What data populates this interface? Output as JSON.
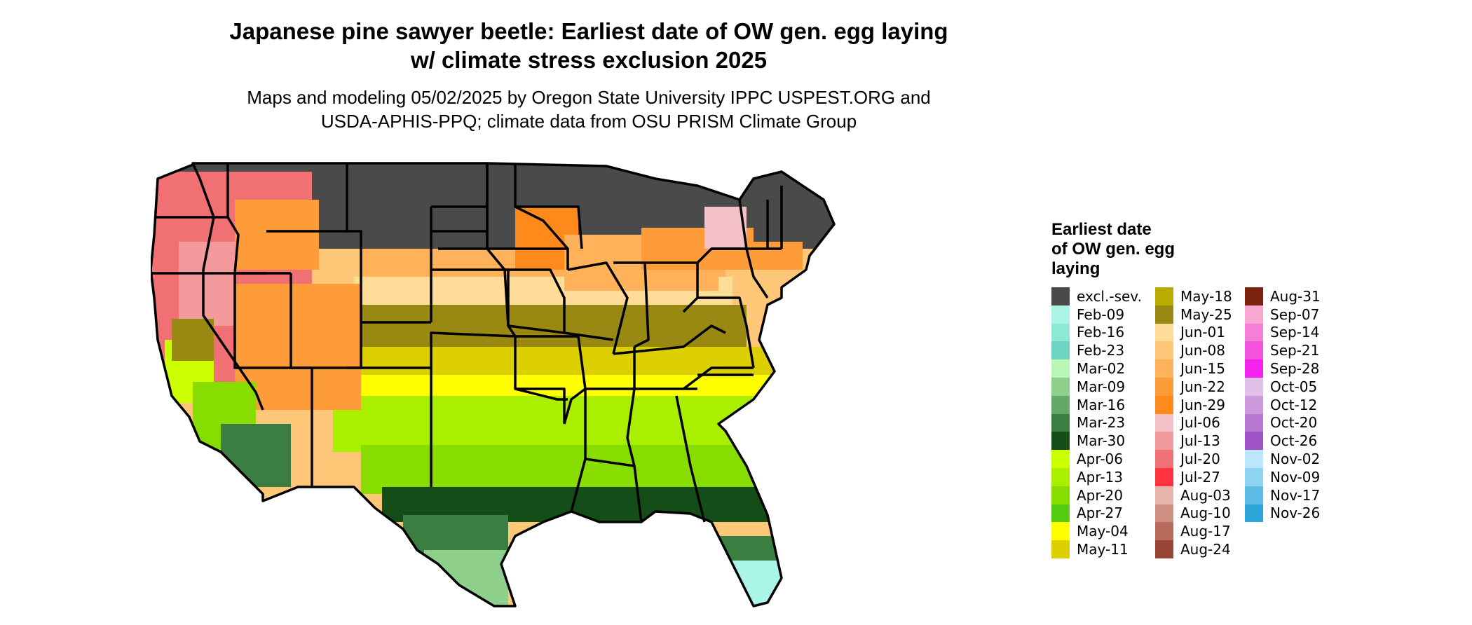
{
  "title": {
    "line1": "Japanese pine sawyer beetle: Earliest date of OW gen. egg laying",
    "line2": "w/ climate stress exclusion 2025"
  },
  "subtitle": {
    "line1": "Maps and modeling 05/02/2025 by Oregon State University IPPC USPEST.ORG and",
    "line2": "USDA-APHIS-PPQ; climate data from OSU PRISM Climate Group"
  },
  "legend": {
    "title_line1": "Earliest date",
    "title_line2": "of OW gen. egg",
    "title_line3": "laying",
    "columns": [
      [
        {
          "label": "excl.-sev.",
          "color": "#4a4a4a"
        },
        {
          "label": "Feb-09",
          "color": "#aaf5e5"
        },
        {
          "label": "Feb-16",
          "color": "#8de8d6"
        },
        {
          "label": "Feb-23",
          "color": "#6fd3c4"
        },
        {
          "label": "Mar-02",
          "color": "#b9f5b5"
        },
        {
          "label": "Mar-09",
          "color": "#8fcf8c"
        },
        {
          "label": "Mar-16",
          "color": "#66a86a"
        },
        {
          "label": "Mar-23",
          "color": "#3c7d42"
        },
        {
          "label": "Mar-30",
          "color": "#154d18"
        },
        {
          "label": "Apr-06",
          "color": "#ccff00"
        },
        {
          "label": "Apr-13",
          "color": "#aaee00"
        },
        {
          "label": "Apr-20",
          "color": "#88dd00"
        },
        {
          "label": "Apr-27",
          "color": "#55cc11"
        },
        {
          "label": "May-04",
          "color": "#ffff00"
        },
        {
          "label": "May-11",
          "color": "#ddd000"
        }
      ],
      [
        {
          "label": "May-18",
          "color": "#bbaa00"
        },
        {
          "label": "May-25",
          "color": "#998811"
        },
        {
          "label": "Jun-01",
          "color": "#ffdd99"
        },
        {
          "label": "Jun-08",
          "color": "#ffc879"
        },
        {
          "label": "Jun-15",
          "color": "#ffb25a"
        },
        {
          "label": "Jun-22",
          "color": "#ff9c3a"
        },
        {
          "label": "Jun-29",
          "color": "#ff8a1c"
        },
        {
          "label": "Jul-06",
          "color": "#f4c2c6"
        },
        {
          "label": "Jul-13",
          "color": "#f29a9c"
        },
        {
          "label": "Jul-20",
          "color": "#f07074"
        },
        {
          "label": "Jul-27",
          "color": "#ff3340"
        },
        {
          "label": "Aug-03",
          "color": "#e6b4aa"
        },
        {
          "label": "Aug-10",
          "color": "#cf8e82"
        },
        {
          "label": "Aug-17",
          "color": "#b86a5c"
        },
        {
          "label": "Aug-24",
          "color": "#9b4535"
        }
      ],
      [
        {
          "label": "Aug-31",
          "color": "#7a2410"
        },
        {
          "label": "Sep-07",
          "color": "#f8a6d2"
        },
        {
          "label": "Sep-14",
          "color": "#f77ed6"
        },
        {
          "label": "Sep-21",
          "color": "#f552de"
        },
        {
          "label": "Sep-28",
          "color": "#f522ee"
        },
        {
          "label": "Oct-05",
          "color": "#e1c1ea"
        },
        {
          "label": "Oct-12",
          "color": "#cc99dd"
        },
        {
          "label": "Oct-20",
          "color": "#b779d3"
        },
        {
          "label": "Oct-26",
          "color": "#a053c6"
        },
        {
          "label": "Nov-02",
          "color": "#bbe8ff"
        },
        {
          "label": "Nov-09",
          "color": "#8fd3f2"
        },
        {
          "label": "Nov-17",
          "color": "#5bbce6"
        },
        {
          "label": "Nov-26",
          "color": "#2ea5d9"
        }
      ]
    ]
  }
}
